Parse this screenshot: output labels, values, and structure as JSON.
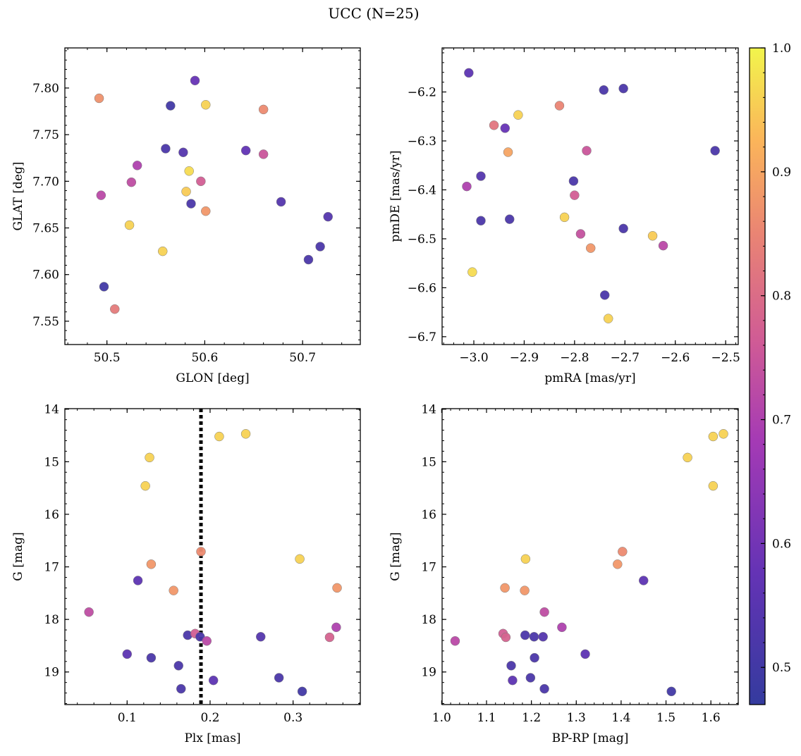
{
  "figure_title": "UCC (N=25)",
  "colorbar": {
    "ticks": [
      "0.5",
      "0.6",
      "0.7",
      "0.8",
      "0.9",
      "1.0"
    ],
    "range": [
      0.47,
      1.0
    ]
  },
  "chart_data": [
    {
      "type": "scatter",
      "xlabel": "GLON [deg]",
      "ylabel": "GLAT [deg]",
      "xlim": [
        50.457,
        50.759
      ],
      "ylim": [
        7.525,
        7.843
      ],
      "y_inverted": false,
      "xticks": [
        {
          "v": 50.5,
          "label": "50.5"
        },
        {
          "v": 50.6,
          "label": "50.6"
        },
        {
          "v": 50.7,
          "label": "50.7"
        }
      ],
      "yticks": [
        {
          "v": 7.55,
          "label": "7.55"
        },
        {
          "v": 7.6,
          "label": "7.60"
        },
        {
          "v": 7.65,
          "label": "7.65"
        },
        {
          "v": 7.7,
          "label": "7.70"
        },
        {
          "v": 7.75,
          "label": "7.75"
        },
        {
          "v": 7.8,
          "label": "7.80"
        }
      ],
      "x_minor_step": 0.02,
      "y_minor_step": 0.01,
      "points": [
        {
          "x": 50.492,
          "y": 7.789,
          "c": 0.87
        },
        {
          "x": 50.59,
          "y": 7.808,
          "c": 0.58
        },
        {
          "x": 50.565,
          "y": 7.781,
          "c": 0.5
        },
        {
          "x": 50.601,
          "y": 7.782,
          "c": 0.96
        },
        {
          "x": 50.66,
          "y": 7.777,
          "c": 0.86
        },
        {
          "x": 50.56,
          "y": 7.735,
          "c": 0.52
        },
        {
          "x": 50.578,
          "y": 7.731,
          "c": 0.54
        },
        {
          "x": 50.642,
          "y": 7.733,
          "c": 0.57
        },
        {
          "x": 50.66,
          "y": 7.729,
          "c": 0.75
        },
        {
          "x": 50.531,
          "y": 7.717,
          "c": 0.7
        },
        {
          "x": 50.584,
          "y": 7.711,
          "c": 0.97
        },
        {
          "x": 50.525,
          "y": 7.699,
          "c": 0.73
        },
        {
          "x": 50.596,
          "y": 7.7,
          "c": 0.77
        },
        {
          "x": 50.581,
          "y": 7.689,
          "c": 0.95
        },
        {
          "x": 50.494,
          "y": 7.685,
          "c": 0.72
        },
        {
          "x": 50.586,
          "y": 7.676,
          "c": 0.52
        },
        {
          "x": 50.678,
          "y": 7.678,
          "c": 0.54
        },
        {
          "x": 50.601,
          "y": 7.668,
          "c": 0.88
        },
        {
          "x": 50.726,
          "y": 7.662,
          "c": 0.54
        },
        {
          "x": 50.523,
          "y": 7.653,
          "c": 0.96
        },
        {
          "x": 50.718,
          "y": 7.63,
          "c": 0.52
        },
        {
          "x": 50.557,
          "y": 7.625,
          "c": 0.96
        },
        {
          "x": 50.706,
          "y": 7.616,
          "c": 0.52
        },
        {
          "x": 50.497,
          "y": 7.587,
          "c": 0.5
        },
        {
          "x": 50.508,
          "y": 7.563,
          "c": 0.83
        }
      ]
    },
    {
      "type": "scatter",
      "xlabel": "pmRA [mas/yr]",
      "ylabel": "pmDE [mas/yr]",
      "xlim": [
        -3.063,
        -2.475
      ],
      "ylim": [
        -6.716,
        -6.11
      ],
      "y_inverted": false,
      "xticks": [
        {
          "v": -3.0,
          "label": "−3.0"
        },
        {
          "v": -2.9,
          "label": "−2.9"
        },
        {
          "v": -2.8,
          "label": "−2.8"
        },
        {
          "v": -2.7,
          "label": "−2.7"
        },
        {
          "v": -2.6,
          "label": "−2.6"
        },
        {
          "v": -2.5,
          "label": "−2.5"
        }
      ],
      "yticks": [
        {
          "v": -6.7,
          "label": "−6.7"
        },
        {
          "v": -6.6,
          "label": "−6.6"
        },
        {
          "v": -6.5,
          "label": "−6.5"
        },
        {
          "v": -6.4,
          "label": "−6.4"
        },
        {
          "v": -6.3,
          "label": "−6.3"
        },
        {
          "v": -6.2,
          "label": "−6.2"
        }
      ],
      "x_minor_step": 0.02,
      "y_minor_step": 0.02,
      "points": [
        {
          "x": -3.01,
          "y": -6.161,
          "c": 0.56
        },
        {
          "x": -2.742,
          "y": -6.196,
          "c": 0.52
        },
        {
          "x": -2.703,
          "y": -6.193,
          "c": 0.52
        },
        {
          "x": -2.83,
          "y": -6.228,
          "c": 0.85
        },
        {
          "x": -2.912,
          "y": -6.247,
          "c": 0.96
        },
        {
          "x": -2.96,
          "y": -6.268,
          "c": 0.82
        },
        {
          "x": -2.938,
          "y": -6.274,
          "c": 0.58
        },
        {
          "x": -2.932,
          "y": -6.323,
          "c": 0.9
        },
        {
          "x": -2.776,
          "y": -6.32,
          "c": 0.75
        },
        {
          "x": -2.521,
          "y": -6.32,
          "c": 0.52
        },
        {
          "x": -2.986,
          "y": -6.372,
          "c": 0.54
        },
        {
          "x": -2.802,
          "y": -6.382,
          "c": 0.52
        },
        {
          "x": -3.014,
          "y": -6.393,
          "c": 0.7
        },
        {
          "x": -2.8,
          "y": -6.411,
          "c": 0.77
        },
        {
          "x": -2.82,
          "y": -6.456,
          "c": 0.96
        },
        {
          "x": -2.986,
          "y": -6.463,
          "c": 0.52
        },
        {
          "x": -2.929,
          "y": -6.46,
          "c": 0.52
        },
        {
          "x": -2.703,
          "y": -6.479,
          "c": 0.52
        },
        {
          "x": -2.788,
          "y": -6.49,
          "c": 0.74
        },
        {
          "x": -2.645,
          "y": -6.494,
          "c": 0.95
        },
        {
          "x": -2.768,
          "y": -6.519,
          "c": 0.88
        },
        {
          "x": -2.624,
          "y": -6.514,
          "c": 0.72
        },
        {
          "x": -3.003,
          "y": -6.568,
          "c": 0.97
        },
        {
          "x": -2.74,
          "y": -6.615,
          "c": 0.52
        },
        {
          "x": -2.733,
          "y": -6.663,
          "c": 0.96
        }
      ]
    },
    {
      "type": "scatter",
      "xlabel": "Plx [mas]",
      "ylabel": "G [mag]",
      "xlim": [
        0.025,
        0.381
      ],
      "ylim": [
        13.99,
        19.62
      ],
      "y_inverted": true,
      "xticks": [
        {
          "v": 0.1,
          "label": "0.1"
        },
        {
          "v": 0.2,
          "label": "0.2"
        },
        {
          "v": 0.3,
          "label": "0.3"
        }
      ],
      "yticks": [
        {
          "v": 14,
          "label": "14"
        },
        {
          "v": 15,
          "label": "15"
        },
        {
          "v": 16,
          "label": "16"
        },
        {
          "v": 17,
          "label": "17"
        },
        {
          "v": 18,
          "label": "18"
        },
        {
          "v": 19,
          "label": "19"
        }
      ],
      "x_minor_step": 0.02,
      "y_minor_step": 0.2,
      "vline": {
        "x": 0.189,
        "style": "dotted"
      },
      "points": [
        {
          "x": 0.211,
          "y": 14.52,
          "c": 0.96
        },
        {
          "x": 0.243,
          "y": 14.47,
          "c": 0.96
        },
        {
          "x": 0.127,
          "y": 14.92,
          "c": 0.96
        },
        {
          "x": 0.122,
          "y": 15.46,
          "c": 0.96
        },
        {
          "x": 0.189,
          "y": 16.71,
          "c": 0.86
        },
        {
          "x": 0.308,
          "y": 16.85,
          "c": 0.96
        },
        {
          "x": 0.129,
          "y": 16.95,
          "c": 0.88
        },
        {
          "x": 0.113,
          "y": 17.26,
          "c": 0.56
        },
        {
          "x": 0.156,
          "y": 17.45,
          "c": 0.88
        },
        {
          "x": 0.353,
          "y": 17.4,
          "c": 0.88
        },
        {
          "x": 0.054,
          "y": 17.86,
          "c": 0.73
        },
        {
          "x": 0.173,
          "y": 18.3,
          "c": 0.52
        },
        {
          "x": 0.182,
          "y": 18.27,
          "c": 0.77
        },
        {
          "x": 0.188,
          "y": 18.33,
          "c": 0.52
        },
        {
          "x": 0.196,
          "y": 18.41,
          "c": 0.72
        },
        {
          "x": 0.261,
          "y": 18.33,
          "c": 0.54
        },
        {
          "x": 0.344,
          "y": 18.34,
          "c": 0.78
        },
        {
          "x": 0.352,
          "y": 18.15,
          "c": 0.7
        },
        {
          "x": 0.1,
          "y": 18.66,
          "c": 0.56
        },
        {
          "x": 0.129,
          "y": 18.73,
          "c": 0.52
        },
        {
          "x": 0.162,
          "y": 18.88,
          "c": 0.52
        },
        {
          "x": 0.283,
          "y": 19.11,
          "c": 0.52
        },
        {
          "x": 0.204,
          "y": 19.16,
          "c": 0.56
        },
        {
          "x": 0.165,
          "y": 19.32,
          "c": 0.52
        },
        {
          "x": 0.311,
          "y": 19.37,
          "c": 0.5
        }
      ]
    },
    {
      "type": "scatter",
      "xlabel": "BP-RP [mag]",
      "ylabel": "G [mag]",
      "xlim": [
        1.001,
        1.661
      ],
      "ylim": [
        13.99,
        19.62
      ],
      "y_inverted": true,
      "xticks": [
        {
          "v": 1.0,
          "label": "1.0"
        },
        {
          "v": 1.1,
          "label": "1.1"
        },
        {
          "v": 1.2,
          "label": "1.2"
        },
        {
          "v": 1.3,
          "label": "1.3"
        },
        {
          "v": 1.4,
          "label": "1.4"
        },
        {
          "v": 1.5,
          "label": "1.5"
        },
        {
          "v": 1.6,
          "label": "1.6"
        }
      ],
      "yticks": [
        {
          "v": 14,
          "label": "14"
        },
        {
          "v": 15,
          "label": "15"
        },
        {
          "v": 16,
          "label": "16"
        },
        {
          "v": 17,
          "label": "17"
        },
        {
          "v": 18,
          "label": "18"
        },
        {
          "v": 19,
          "label": "19"
        }
      ],
      "x_minor_step": 0.02,
      "y_minor_step": 0.2,
      "points": [
        {
          "x": 1.605,
          "y": 14.52,
          "c": 0.96
        },
        {
          "x": 1.628,
          "y": 14.47,
          "c": 0.96
        },
        {
          "x": 1.548,
          "y": 14.92,
          "c": 0.96
        },
        {
          "x": 1.605,
          "y": 15.46,
          "c": 0.96
        },
        {
          "x": 1.403,
          "y": 16.71,
          "c": 0.86
        },
        {
          "x": 1.187,
          "y": 16.85,
          "c": 0.96
        },
        {
          "x": 1.392,
          "y": 16.95,
          "c": 0.88
        },
        {
          "x": 1.45,
          "y": 17.26,
          "c": 0.56
        },
        {
          "x": 1.185,
          "y": 17.45,
          "c": 0.88
        },
        {
          "x": 1.141,
          "y": 17.4,
          "c": 0.88
        },
        {
          "x": 1.229,
          "y": 17.86,
          "c": 0.73
        },
        {
          "x": 1.186,
          "y": 18.3,
          "c": 0.52
        },
        {
          "x": 1.137,
          "y": 18.27,
          "c": 0.77
        },
        {
          "x": 1.206,
          "y": 18.33,
          "c": 0.52
        },
        {
          "x": 1.03,
          "y": 18.41,
          "c": 0.72
        },
        {
          "x": 1.226,
          "y": 18.33,
          "c": 0.54
        },
        {
          "x": 1.143,
          "y": 18.34,
          "c": 0.78
        },
        {
          "x": 1.268,
          "y": 18.15,
          "c": 0.7
        },
        {
          "x": 1.32,
          "y": 18.66,
          "c": 0.56
        },
        {
          "x": 1.207,
          "y": 18.73,
          "c": 0.52
        },
        {
          "x": 1.155,
          "y": 18.88,
          "c": 0.52
        },
        {
          "x": 1.198,
          "y": 19.11,
          "c": 0.52
        },
        {
          "x": 1.158,
          "y": 19.16,
          "c": 0.56
        },
        {
          "x": 1.229,
          "y": 19.32,
          "c": 0.52
        },
        {
          "x": 1.512,
          "y": 19.37,
          "c": 0.5
        }
      ]
    }
  ]
}
